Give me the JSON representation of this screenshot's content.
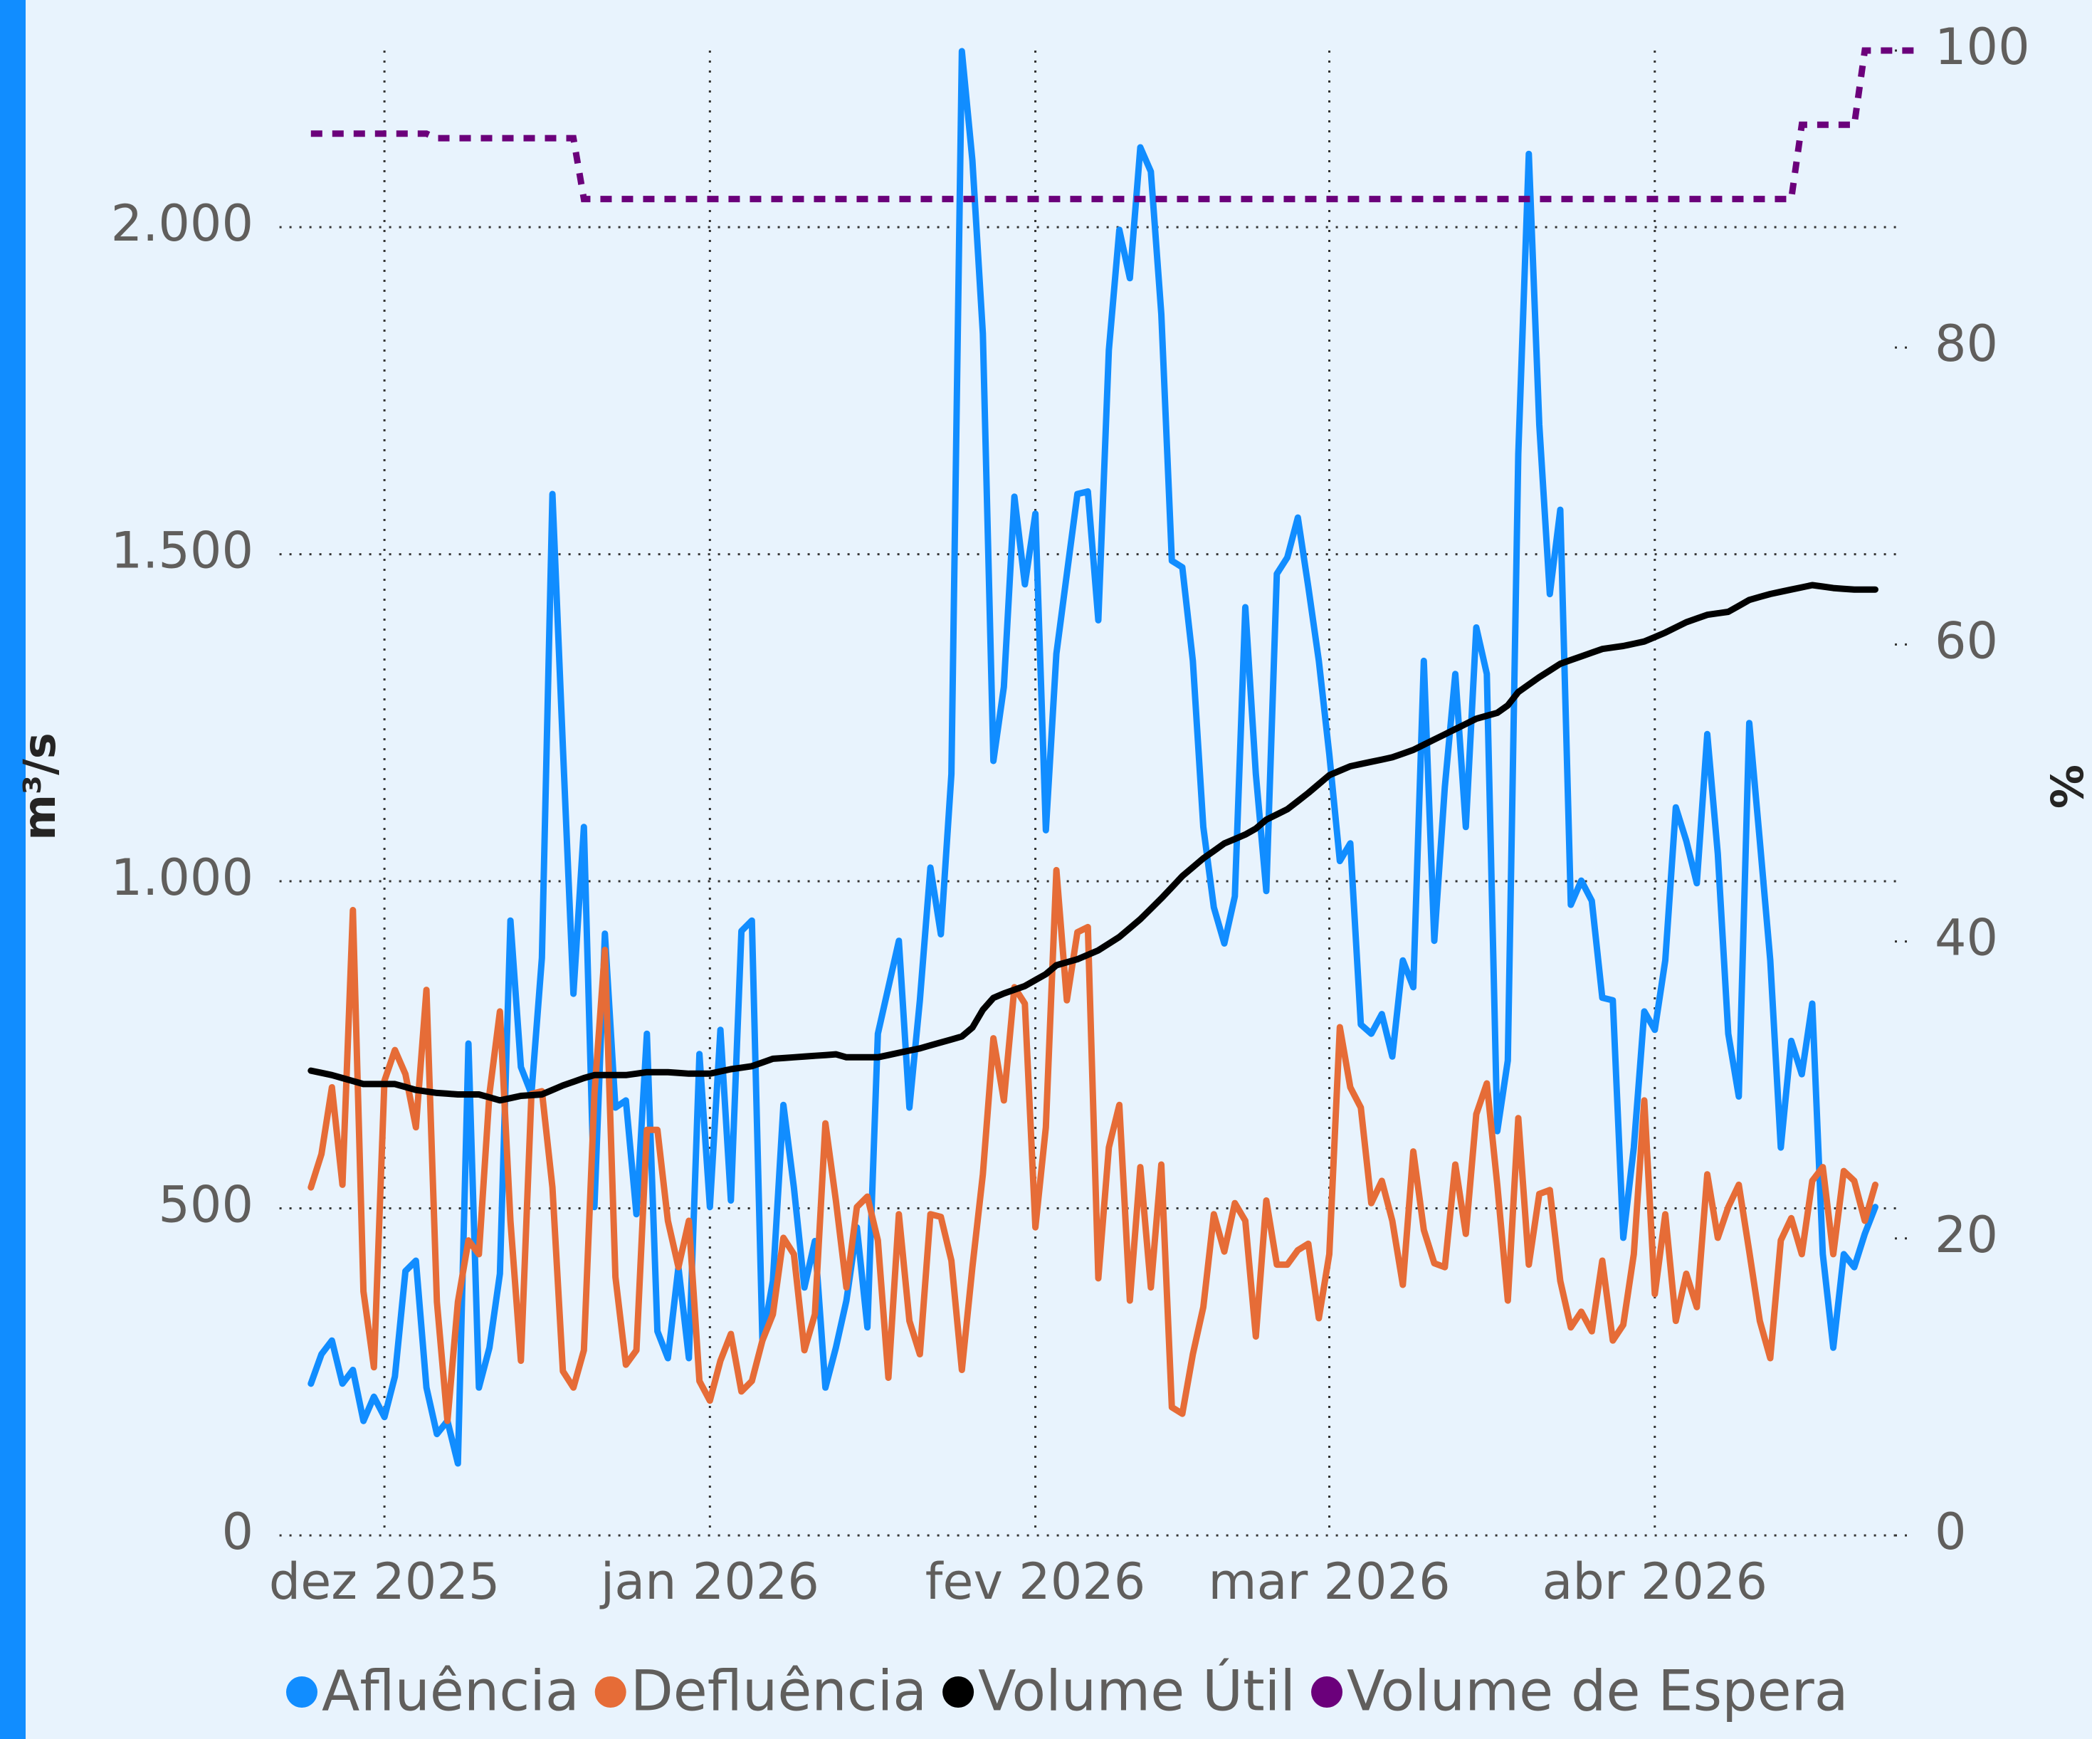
{
  "chart_data": {
    "type": "line",
    "y_label": "m³/s",
    "y2_label": "%",
    "xlim": [
      -3,
      151
    ],
    "xticks": [
      {
        "value": 7,
        "label": "dez 2025"
      },
      {
        "value": 38,
        "label": "jan 2026"
      },
      {
        "value": 69,
        "label": "fev 2026"
      },
      {
        "value": 97,
        "label": "mar 2026"
      },
      {
        "value": 128,
        "label": "abr 2026"
      }
    ],
    "ylim": [
      0,
      2270
    ],
    "yticks": [
      0,
      500,
      {
        "value": 1000,
        "label": "1.000"
      },
      {
        "value": 1500,
        "label": "1.500"
      },
      {
        "value": 2000,
        "label": "2.000"
      }
    ],
    "y2lim": [
      0,
      100
    ],
    "y2ticks": [
      0,
      20,
      40,
      60,
      80,
      100
    ],
    "grid": true,
    "legend": "bottom",
    "series": [
      {
        "name": "Afluência",
        "color": "#118DFF",
        "values": [
          232,
          277,
          298,
          232,
          253,
          175,
          212,
          181,
          243,
          404,
          420,
          226,
          155,
          175,
          110,
          752,
          226,
          287,
          400,
          940,
          716,
          675,
          883,
          1592,
          1205,
          828,
          1083,
          502,
          920,
          654,
          665,
          491,
          767,
          312,
          271,
          410,
          271,
          736,
          502,
          773,
          512,
          924,
          940,
          298,
          389,
          658,
          532,
          379,
          450,
          226,
          287,
          359,
          471,
          318,
          767,
          838,
          909,
          654,
          818,
          1021,
          919,
          1164,
          2269,
          2102,
          1837,
          1184,
          1297,
          1588,
          1454,
          1562,
          1078,
          1348,
          1470,
          1592,
          1596,
          1399,
          1812,
          1996,
          1922,
          2122,
          2085,
          1867,
          1490,
          1480,
          1337,
          1083,
          960,
          905,
          977,
          1419,
          1164,
          985,
          1470,
          1495,
          1556,
          1450,
          1337,
          1194,
          1031,
          1058,
          781,
          767,
          797,
          732,
          879,
          838,
          1337,
          909,
          1144,
          1317,
          1083,
          1388,
          1317,
          618,
          726,
          1653,
          2112,
          1698,
          1439,
          1568,
          964,
          1001,
          970,
          822,
          818,
          455,
          593,
          801,
          773,
          879,
          1113,
          1062,
          997,
          1225,
          1042,
          767,
          671,
          1242,
          1062,
          879,
          593,
          756,
          705,
          813,
          430,
          287,
          430,
          410,
          461,
          502
        ]
      },
      {
        "name": "Defluência",
        "color": "#E66C37",
        "values": [
          532,
          583,
          685,
          536,
          956,
          373,
          257,
          695,
          742,
          705,
          624,
          834,
          357,
          175,
          357,
          451,
          430,
          675,
          801,
          481,
          267,
          675,
          679,
          532,
          251,
          226,
          283,
          675,
          895,
          395,
          261,
          283,
          620,
          620,
          481,
          410,
          481,
          236,
          206,
          267,
          308,
          220,
          236,
          298,
          338,
          455,
          430,
          283,
          338,
          630,
          512,
          379,
          502,
          518,
          451,
          241,
          491,
          328,
          277,
          491,
          487,
          420,
          253,
          410,
          552,
          760,
          665,
          838,
          813,
          471,
          624,
          1017,
          818,
          922,
          930,
          393,
          593,
          658,
          359,
          563,
          379,
          567,
          196,
          186,
          277,
          349,
          491,
          434,
          508,
          481,
          304,
          512,
          414,
          414,
          436,
          446,
          332,
          430,
          777,
          685,
          654,
          508,
          542,
          481,
          383,
          587,
          467,
          416,
          410,
          567,
          461,
          644,
          691,
          536,
          359,
          638,
          414,
          522,
          528,
          389,
          318,
          342,
          312,
          420,
          298,
          322,
          430,
          665,
          369,
          491,
          328,
          400,
          349,
          552,
          455,
          502,
          536,
          434,
          328,
          271,
          451,
          485,
          430,
          542,
          563,
          430,
          557,
          542,
          481,
          536
        ]
      },
      {
        "name": "Volume Útil",
        "color": "#000000",
        "axis": "y2",
        "values": [
          31.3,
          31.15,
          31.0,
          30.8,
          30.6,
          30.4,
          30.4,
          30.4,
          30.4,
          30.2,
          30.0,
          29.9,
          29.8,
          29.75,
          29.7,
          29.7,
          29.7,
          29.5,
          29.3,
          29.45,
          29.6,
          29.65,
          29.7,
          30.0,
          30.3,
          30.55,
          30.8,
          31.0,
          31.0,
          31.0,
          31.0,
          31.1,
          31.2,
          31.2,
          31.2,
          31.15,
          31.1,
          31.1,
          31.1,
          31.25,
          31.4,
          31.5,
          31.6,
          31.85,
          32.1,
          32.15,
          32.2,
          32.25,
          32.3,
          32.35,
          32.4,
          32.2,
          32.2,
          32.2,
          32.2,
          32.35,
          32.5,
          32.65,
          32.8,
          33.0,
          33.2,
          33.4,
          33.6,
          34.2,
          35.4,
          36.2,
          36.5,
          36.75,
          37.0,
          37.4,
          37.8,
          38.4,
          38.6,
          38.8,
          39.1,
          39.4,
          39.85,
          40.3,
          40.9,
          41.5,
          42.2,
          42.9,
          43.65,
          44.4,
          45.0,
          45.6,
          46.1,
          46.6,
          46.9,
          47.2,
          47.6,
          48.2,
          48.55,
          48.9,
          49.45,
          50.0,
          50.6,
          51.2,
          51.5,
          51.8,
          51.95,
          52.1,
          52.25,
          52.4,
          52.65,
          52.9,
          53.25,
          53.6,
          53.95,
          54.3,
          54.65,
          55.0,
          55.2,
          55.4,
          55.9,
          56.8,
          57.3,
          57.8,
          58.25,
          58.7,
          58.95,
          59.2,
          59.45,
          59.7,
          59.8,
          59.9,
          60.05,
          60.2,
          60.5,
          60.8,
          61.15,
          61.5,
          61.75,
          62.0,
          62.1,
          62.2,
          62.6,
          63.0,
          63.2,
          63.4,
          63.55,
          63.7,
          63.85,
          64.0,
          63.9,
          63.8,
          63.75,
          63.7,
          63.7,
          63.7
        ]
      },
      {
        "name": "Volume de Espera",
        "color": "#6B007B",
        "axis": "y2",
        "dashed": true,
        "values": [
          94.4,
          94.4,
          94.4,
          94.4,
          94.4,
          94.4,
          94.4,
          94.4,
          94.4,
          94.4,
          94.4,
          94.4,
          94.1,
          94.1,
          94.1,
          94.1,
          94.1,
          94.1,
          94.1,
          94.1,
          94.1,
          94.1,
          94.1,
          94.1,
          94.1,
          94.1,
          90,
          90,
          90,
          90,
          90,
          90,
          90,
          90,
          90,
          90,
          90,
          90,
          90,
          90,
          90,
          90,
          90,
          90,
          90,
          90,
          90,
          90,
          90,
          90,
          90,
          90,
          90,
          90,
          90,
          90,
          90,
          90,
          90,
          90,
          90,
          90,
          90,
          90,
          90,
          90,
          90,
          90,
          90,
          90,
          90,
          90,
          90,
          90,
          90,
          90,
          90,
          90,
          90,
          90,
          90,
          90,
          90,
          90,
          90,
          90,
          90,
          90,
          90,
          90,
          90,
          90,
          90,
          90,
          90,
          90,
          90,
          90,
          90,
          90,
          90,
          90,
          90,
          90,
          90,
          90,
          90,
          90,
          90,
          90,
          90,
          90,
          90,
          90,
          90,
          90,
          90,
          90,
          90,
          90,
          90,
          90,
          90,
          90,
          90,
          90,
          90,
          90,
          90,
          90,
          90,
          90,
          90,
          90,
          90,
          90,
          90,
          90,
          90,
          90,
          90,
          90,
          95,
          95,
          95,
          95,
          95,
          95,
          100,
          100,
          100,
          100,
          100,
          100
        ]
      }
    ]
  }
}
